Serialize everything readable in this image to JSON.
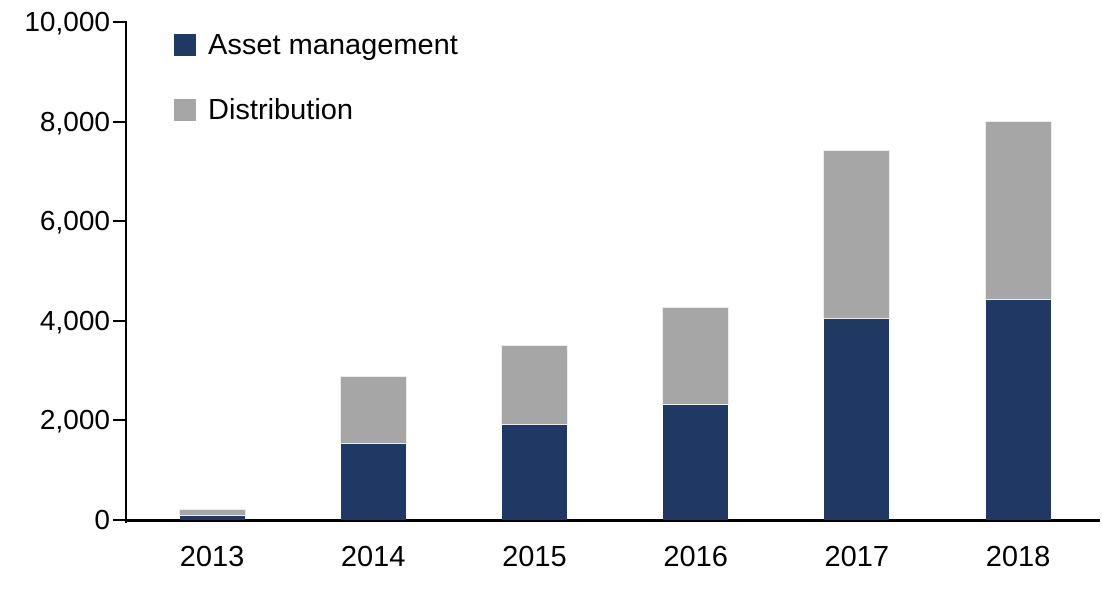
{
  "chart_data": {
    "type": "bar",
    "stacked": true,
    "title": "",
    "xlabel": "",
    "ylabel": "",
    "categories": [
      "2013",
      "2014",
      "2015",
      "2016",
      "2017",
      "2018"
    ],
    "series": [
      {
        "name": "Asset management",
        "color": "#1F3864",
        "values": [
          100,
          1550,
          1920,
          2330,
          4050,
          4430
        ]
      },
      {
        "name": "Distribution",
        "color": "#A6A6A6",
        "values": [
          100,
          1320,
          1580,
          1920,
          3350,
          3570
        ]
      }
    ],
    "totals": [
      200,
      2870,
      3500,
      4250,
      7400,
      8000
    ],
    "ylim": [
      0,
      10000
    ],
    "yticks": [
      0,
      2000,
      4000,
      6000,
      8000,
      10000
    ],
    "ytick_labels": [
      "0",
      "2,000",
      "4,000",
      "6,000",
      "8,000",
      "10,000"
    ],
    "grid": false,
    "legend_position": "top-left-inside",
    "background": "#FFFFFF",
    "axis_color": "#000000"
  }
}
